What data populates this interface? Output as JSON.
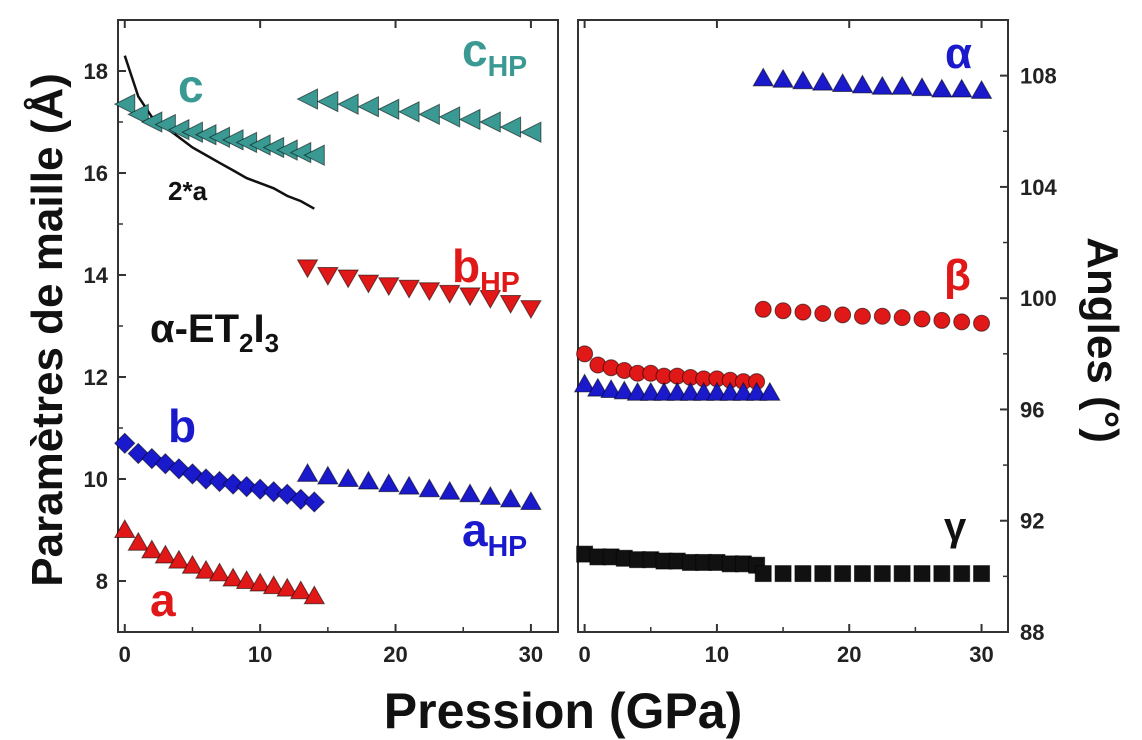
{
  "chart_data": [
    {
      "type": "scatter",
      "panel": "left",
      "xlabel": "Pression (GPa)",
      "ylabel": "Paramètres de maille (Å)",
      "xlim": [
        -0.5,
        32
      ],
      "ylim": [
        7,
        19
      ],
      "xticks": [
        0,
        10,
        20,
        30
      ],
      "yticks": [
        8,
        10,
        12,
        14,
        16,
        18
      ],
      "compound_label": {
        "base": "α-ET",
        "sub1": "2",
        "mid": "I",
        "sub2": "3"
      },
      "series": [
        {
          "name": "c",
          "label": "c",
          "label_sub": "",
          "marker": "triangle-left",
          "color": "#3a9a93",
          "x": [
            0,
            1,
            2,
            3,
            4,
            5,
            6,
            7,
            8,
            9,
            10,
            11,
            12,
            13,
            14
          ],
          "y": [
            17.35,
            17.15,
            17.0,
            16.95,
            16.85,
            16.8,
            16.75,
            16.7,
            16.65,
            16.6,
            16.55,
            16.5,
            16.45,
            16.4,
            16.35
          ]
        },
        {
          "name": "c_HP",
          "label": "c",
          "label_sub": "HP",
          "marker": "triangle-left",
          "color": "#3a9a93",
          "x": [
            13.5,
            15,
            16.5,
            18,
            19.5,
            21,
            22.5,
            24,
            25.5,
            27,
            28.5,
            30
          ],
          "y": [
            17.45,
            17.4,
            17.35,
            17.3,
            17.25,
            17.2,
            17.15,
            17.1,
            17.05,
            17.0,
            16.9,
            16.8
          ]
        },
        {
          "name": "b_HP",
          "label": "b",
          "label_sub": "HP",
          "marker": "triangle-down",
          "color": "#e01818",
          "x": [
            13.5,
            15,
            16.5,
            18,
            19.5,
            21,
            22.5,
            24,
            25.5,
            27,
            28.5,
            30
          ],
          "y": [
            14.15,
            14.0,
            13.95,
            13.85,
            13.8,
            13.75,
            13.7,
            13.65,
            13.6,
            13.55,
            13.45,
            13.35
          ]
        },
        {
          "name": "b",
          "label": "b",
          "label_sub": "",
          "marker": "diamond",
          "color": "#1a1acc",
          "x": [
            0,
            1,
            2,
            3,
            4,
            5,
            6,
            7,
            8,
            9,
            10,
            11,
            12,
            13,
            14
          ],
          "y": [
            10.7,
            10.5,
            10.4,
            10.3,
            10.2,
            10.1,
            10.0,
            9.95,
            9.9,
            9.85,
            9.8,
            9.75,
            9.7,
            9.6,
            9.55
          ]
        },
        {
          "name": "a_HP",
          "label": "a",
          "label_sub": "HP",
          "marker": "triangle-up",
          "color": "#1a1acc",
          "x": [
            13.5,
            15,
            16.5,
            18,
            19.5,
            21,
            22.5,
            24,
            25.5,
            27,
            28.5,
            30
          ],
          "y": [
            10.1,
            10.05,
            10.0,
            9.95,
            9.9,
            9.85,
            9.8,
            9.75,
            9.7,
            9.65,
            9.6,
            9.55
          ]
        },
        {
          "name": "a",
          "label": "a",
          "label_sub": "",
          "marker": "triangle-up",
          "color": "#e01818",
          "x": [
            0,
            1,
            2,
            3,
            4,
            5,
            6,
            7,
            8,
            9,
            10,
            11,
            12,
            13,
            14
          ],
          "y": [
            9.0,
            8.75,
            8.6,
            8.5,
            8.4,
            8.3,
            8.2,
            8.15,
            8.05,
            8.0,
            7.95,
            7.9,
            7.85,
            7.8,
            7.7
          ]
        }
      ],
      "curve": {
        "name": "2*a",
        "label": "2*a",
        "color": "#111111",
        "x": [
          0,
          1,
          2,
          3,
          4,
          5,
          6,
          7,
          8,
          9,
          10,
          11,
          12,
          13,
          14
        ],
        "y": [
          18.3,
          17.5,
          17.1,
          16.9,
          16.7,
          16.5,
          16.35,
          16.2,
          16.05,
          15.9,
          15.8,
          15.7,
          15.55,
          15.45,
          15.3
        ]
      }
    },
    {
      "type": "scatter",
      "panel": "right",
      "xlabel": "Pression (GPa)",
      "ylabel": "Angles (°)",
      "xlim": [
        -0.5,
        32
      ],
      "ylim": [
        88,
        110
      ],
      "xticks": [
        0,
        10,
        20,
        30
      ],
      "yticks": [
        88,
        92,
        96,
        100,
        104,
        108
      ],
      "series": [
        {
          "name": "α",
          "label": "α",
          "marker": "triangle-up",
          "color": "#1a1acc",
          "x": [
            13.5,
            15,
            16.5,
            18,
            19.5,
            21,
            22.5,
            24,
            25.5,
            27,
            28.5,
            30
          ],
          "y": [
            107.9,
            107.85,
            107.8,
            107.75,
            107.7,
            107.65,
            107.6,
            107.6,
            107.55,
            107.5,
            107.5,
            107.45
          ]
        },
        {
          "name": "β",
          "label": "β",
          "marker": "circle",
          "color": "#e01818",
          "x": [
            0,
            1,
            2,
            3,
            4,
            5,
            6,
            7,
            8,
            9,
            10,
            11,
            12,
            13,
            13.5,
            15,
            16.5,
            18,
            19.5,
            21,
            22.5,
            24,
            25.5,
            27,
            28.5,
            30
          ],
          "y": [
            98.0,
            97.6,
            97.5,
            97.4,
            97.3,
            97.3,
            97.2,
            97.2,
            97.15,
            97.1,
            97.1,
            97.05,
            97.0,
            97.0,
            99.6,
            99.55,
            99.5,
            99.45,
            99.4,
            99.35,
            99.35,
            99.3,
            99.25,
            99.2,
            99.15,
            99.1
          ]
        },
        {
          "name": "α_low",
          "label": "",
          "marker": "triangle-up",
          "color": "#1a1acc",
          "x": [
            0,
            1,
            2,
            3,
            4,
            5,
            6,
            7,
            8,
            9,
            10,
            11,
            12,
            13,
            14
          ],
          "y": [
            96.9,
            96.75,
            96.7,
            96.65,
            96.6,
            96.6,
            96.6,
            96.6,
            96.6,
            96.6,
            96.6,
            96.6,
            96.6,
            96.6,
            96.6
          ]
        },
        {
          "name": "γ",
          "label": "γ",
          "marker": "square",
          "color": "#111111",
          "x": [
            0,
            1,
            2,
            3,
            4,
            5,
            6,
            7,
            8,
            9,
            10,
            11,
            12,
            13,
            13.5,
            15,
            16.5,
            18,
            19.5,
            21,
            22.5,
            24,
            25.5,
            27,
            28.5,
            30
          ],
          "y": [
            90.8,
            90.7,
            90.7,
            90.65,
            90.6,
            90.6,
            90.55,
            90.55,
            90.5,
            90.5,
            90.5,
            90.45,
            90.45,
            90.4,
            90.1,
            90.1,
            90.1,
            90.1,
            90.1,
            90.1,
            90.1,
            90.1,
            90.1,
            90.1,
            90.1,
            90.1
          ]
        }
      ]
    }
  ]
}
